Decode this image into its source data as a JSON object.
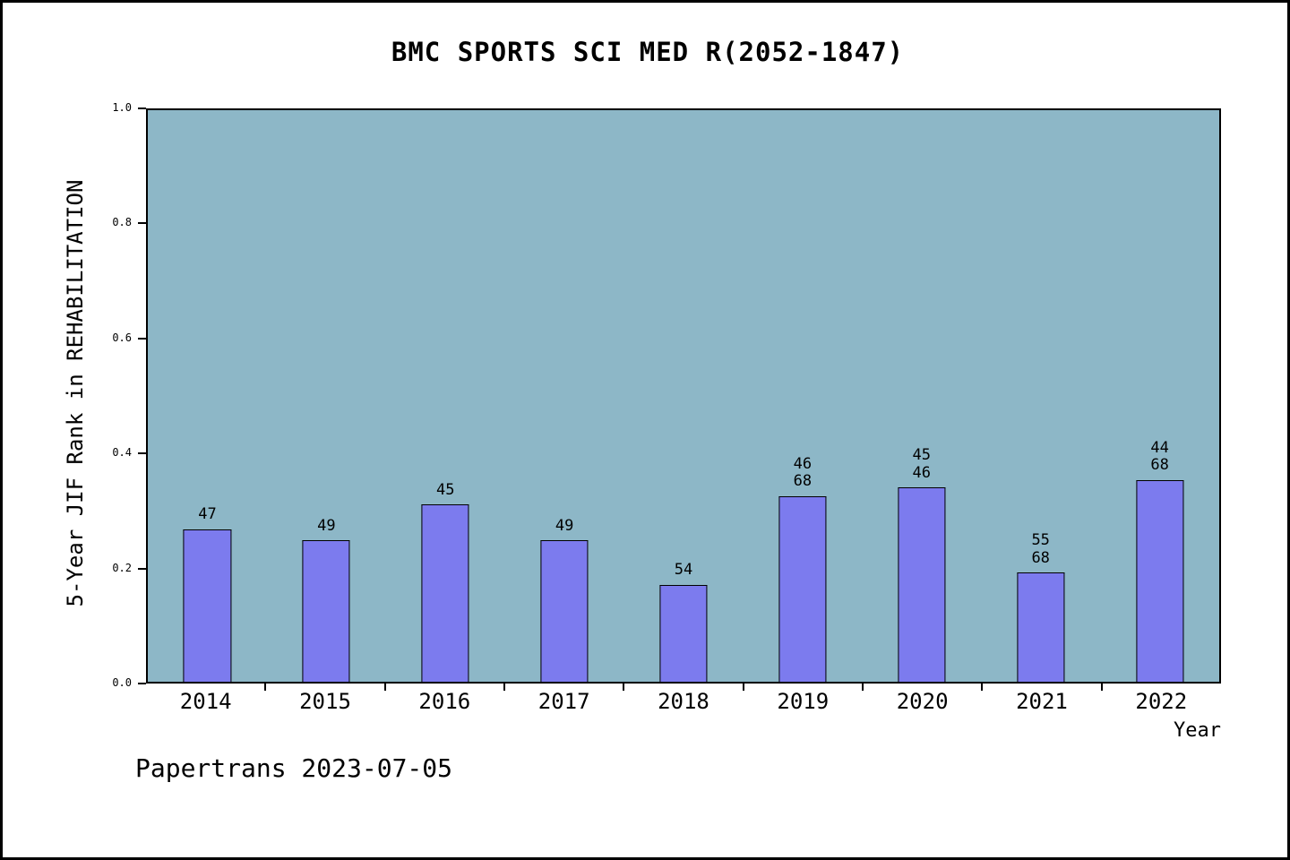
{
  "footer_text": "Papertrans 2023-07-05",
  "chart_data": {
    "type": "bar",
    "title": "BMC SPORTS SCI MED R(2052-1847)",
    "xlabel": "Year",
    "ylabel": "5-Year JIF Rank in REHABILITATION",
    "categories": [
      "2014",
      "2015",
      "2016",
      "2017",
      "2018",
      "2019",
      "2020",
      "2021",
      "2022"
    ],
    "values": [
      0.267,
      0.247,
      0.31,
      0.247,
      0.17,
      0.325,
      0.34,
      0.191,
      0.353
    ],
    "bar_labels": [
      [
        "47"
      ],
      [
        "49"
      ],
      [
        "45"
      ],
      [
        "49"
      ],
      [
        "54"
      ],
      [
        "46",
        "68"
      ],
      [
        "45",
        "46"
      ],
      [
        "55",
        "68"
      ],
      [
        "44",
        "68"
      ]
    ],
    "ylim": [
      0.0,
      1.0
    ],
    "yticks": [
      0.0,
      0.2,
      0.4,
      0.6,
      0.8,
      1.0
    ],
    "ytick_labels": [
      "0.0",
      "0.2",
      "0.4",
      "0.6",
      "0.8",
      "1.0"
    ],
    "grid": false,
    "legend": null,
    "annotation": "Papertrans 2023-07-05",
    "colors": {
      "plot_background": "#8db7c7",
      "bar_fill": "#7c7bee",
      "bar_edge": "#000000",
      "axis": "#000000",
      "page_background": "#ffffff"
    }
  }
}
